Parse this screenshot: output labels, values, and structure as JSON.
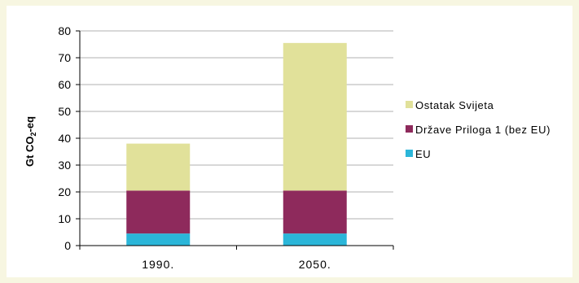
{
  "chart_data": {
    "type": "bar",
    "stacked": true,
    "categories": [
      "1990.",
      "2050."
    ],
    "series": [
      {
        "name": "EU",
        "values": [
          4.5,
          4.5
        ],
        "color": "#2bb6d9"
      },
      {
        "name": "Države Priloga 1 (bez EU)",
        "values": [
          16,
          16
        ],
        "color": "#8e2a5c"
      },
      {
        "name": "Ostatak Svijeta",
        "values": [
          17.5,
          55
        ],
        "color": "#e1e19a"
      }
    ],
    "ylabel": "Gt CO",
    "ylabel_sub": "2",
    "ylabel_suffix": "-eq",
    "ylim": [
      0,
      80
    ],
    "yticks": [
      "0",
      "10",
      "20",
      "30",
      "40",
      "50",
      "60",
      "70",
      "80"
    ],
    "grid": true,
    "legend_position": "right"
  }
}
